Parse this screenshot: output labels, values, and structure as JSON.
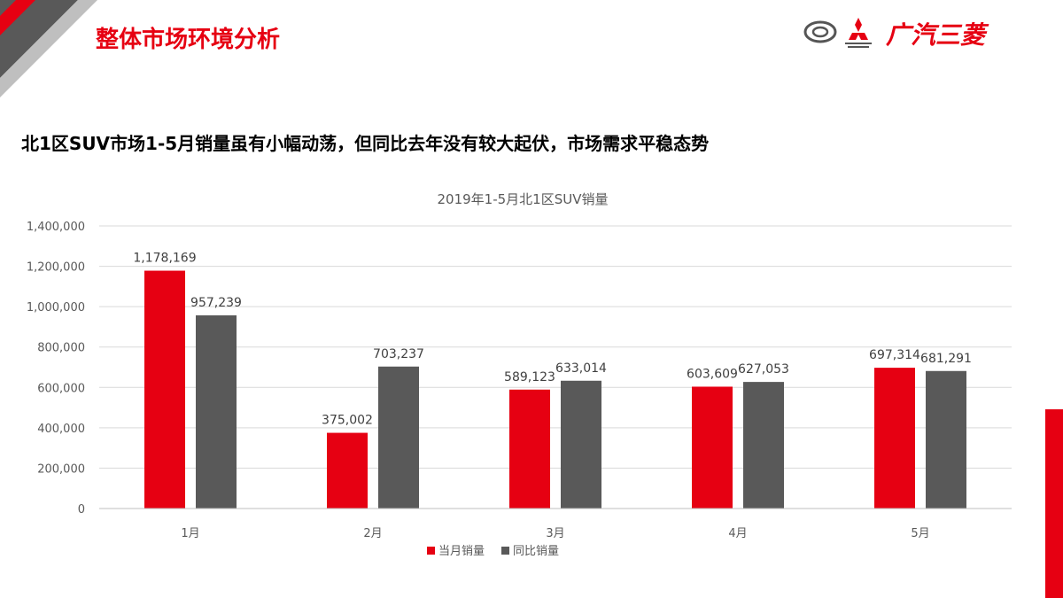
{
  "header": {
    "title": "整体市场环境分析",
    "brand": "广汽三菱"
  },
  "headline": "北1区SUV市场1-5月销量虽有小幅动荡，但同比去年没有较大起伏，市场需求平稳态势",
  "colors": {
    "accent": "#e60012",
    "series_current": "#e60012",
    "series_yoy": "#595959",
    "grid": "#d9d9d9"
  },
  "chart_data": {
    "type": "bar",
    "title": "2019年1-5月北1区SUV销量",
    "categories": [
      "1月",
      "2月",
      "3月",
      "4月",
      "5月"
    ],
    "series": [
      {
        "name": "当月销量",
        "values": [
          1178169,
          375002,
          589123,
          603609,
          697314
        ],
        "labels": [
          "1,178,169",
          "375,002",
          "589,123",
          "603,609",
          "697,314"
        ]
      },
      {
        "name": "同比销量",
        "values": [
          957239,
          703237,
          633014,
          627053,
          681291
        ],
        "labels": [
          "957,239",
          "703,237",
          "633,014",
          "627,053",
          "681,291"
        ]
      }
    ],
    "ylim": [
      0,
      1400000
    ],
    "yticks": [
      0,
      200000,
      400000,
      600000,
      800000,
      1000000,
      1200000,
      1400000
    ],
    "ytick_labels": [
      "0",
      "200,000",
      "400,000",
      "600,000",
      "800,000",
      "1,000,000",
      "1,200,000",
      "1,400,000"
    ],
    "grid": true,
    "legend_position": "bottom"
  }
}
